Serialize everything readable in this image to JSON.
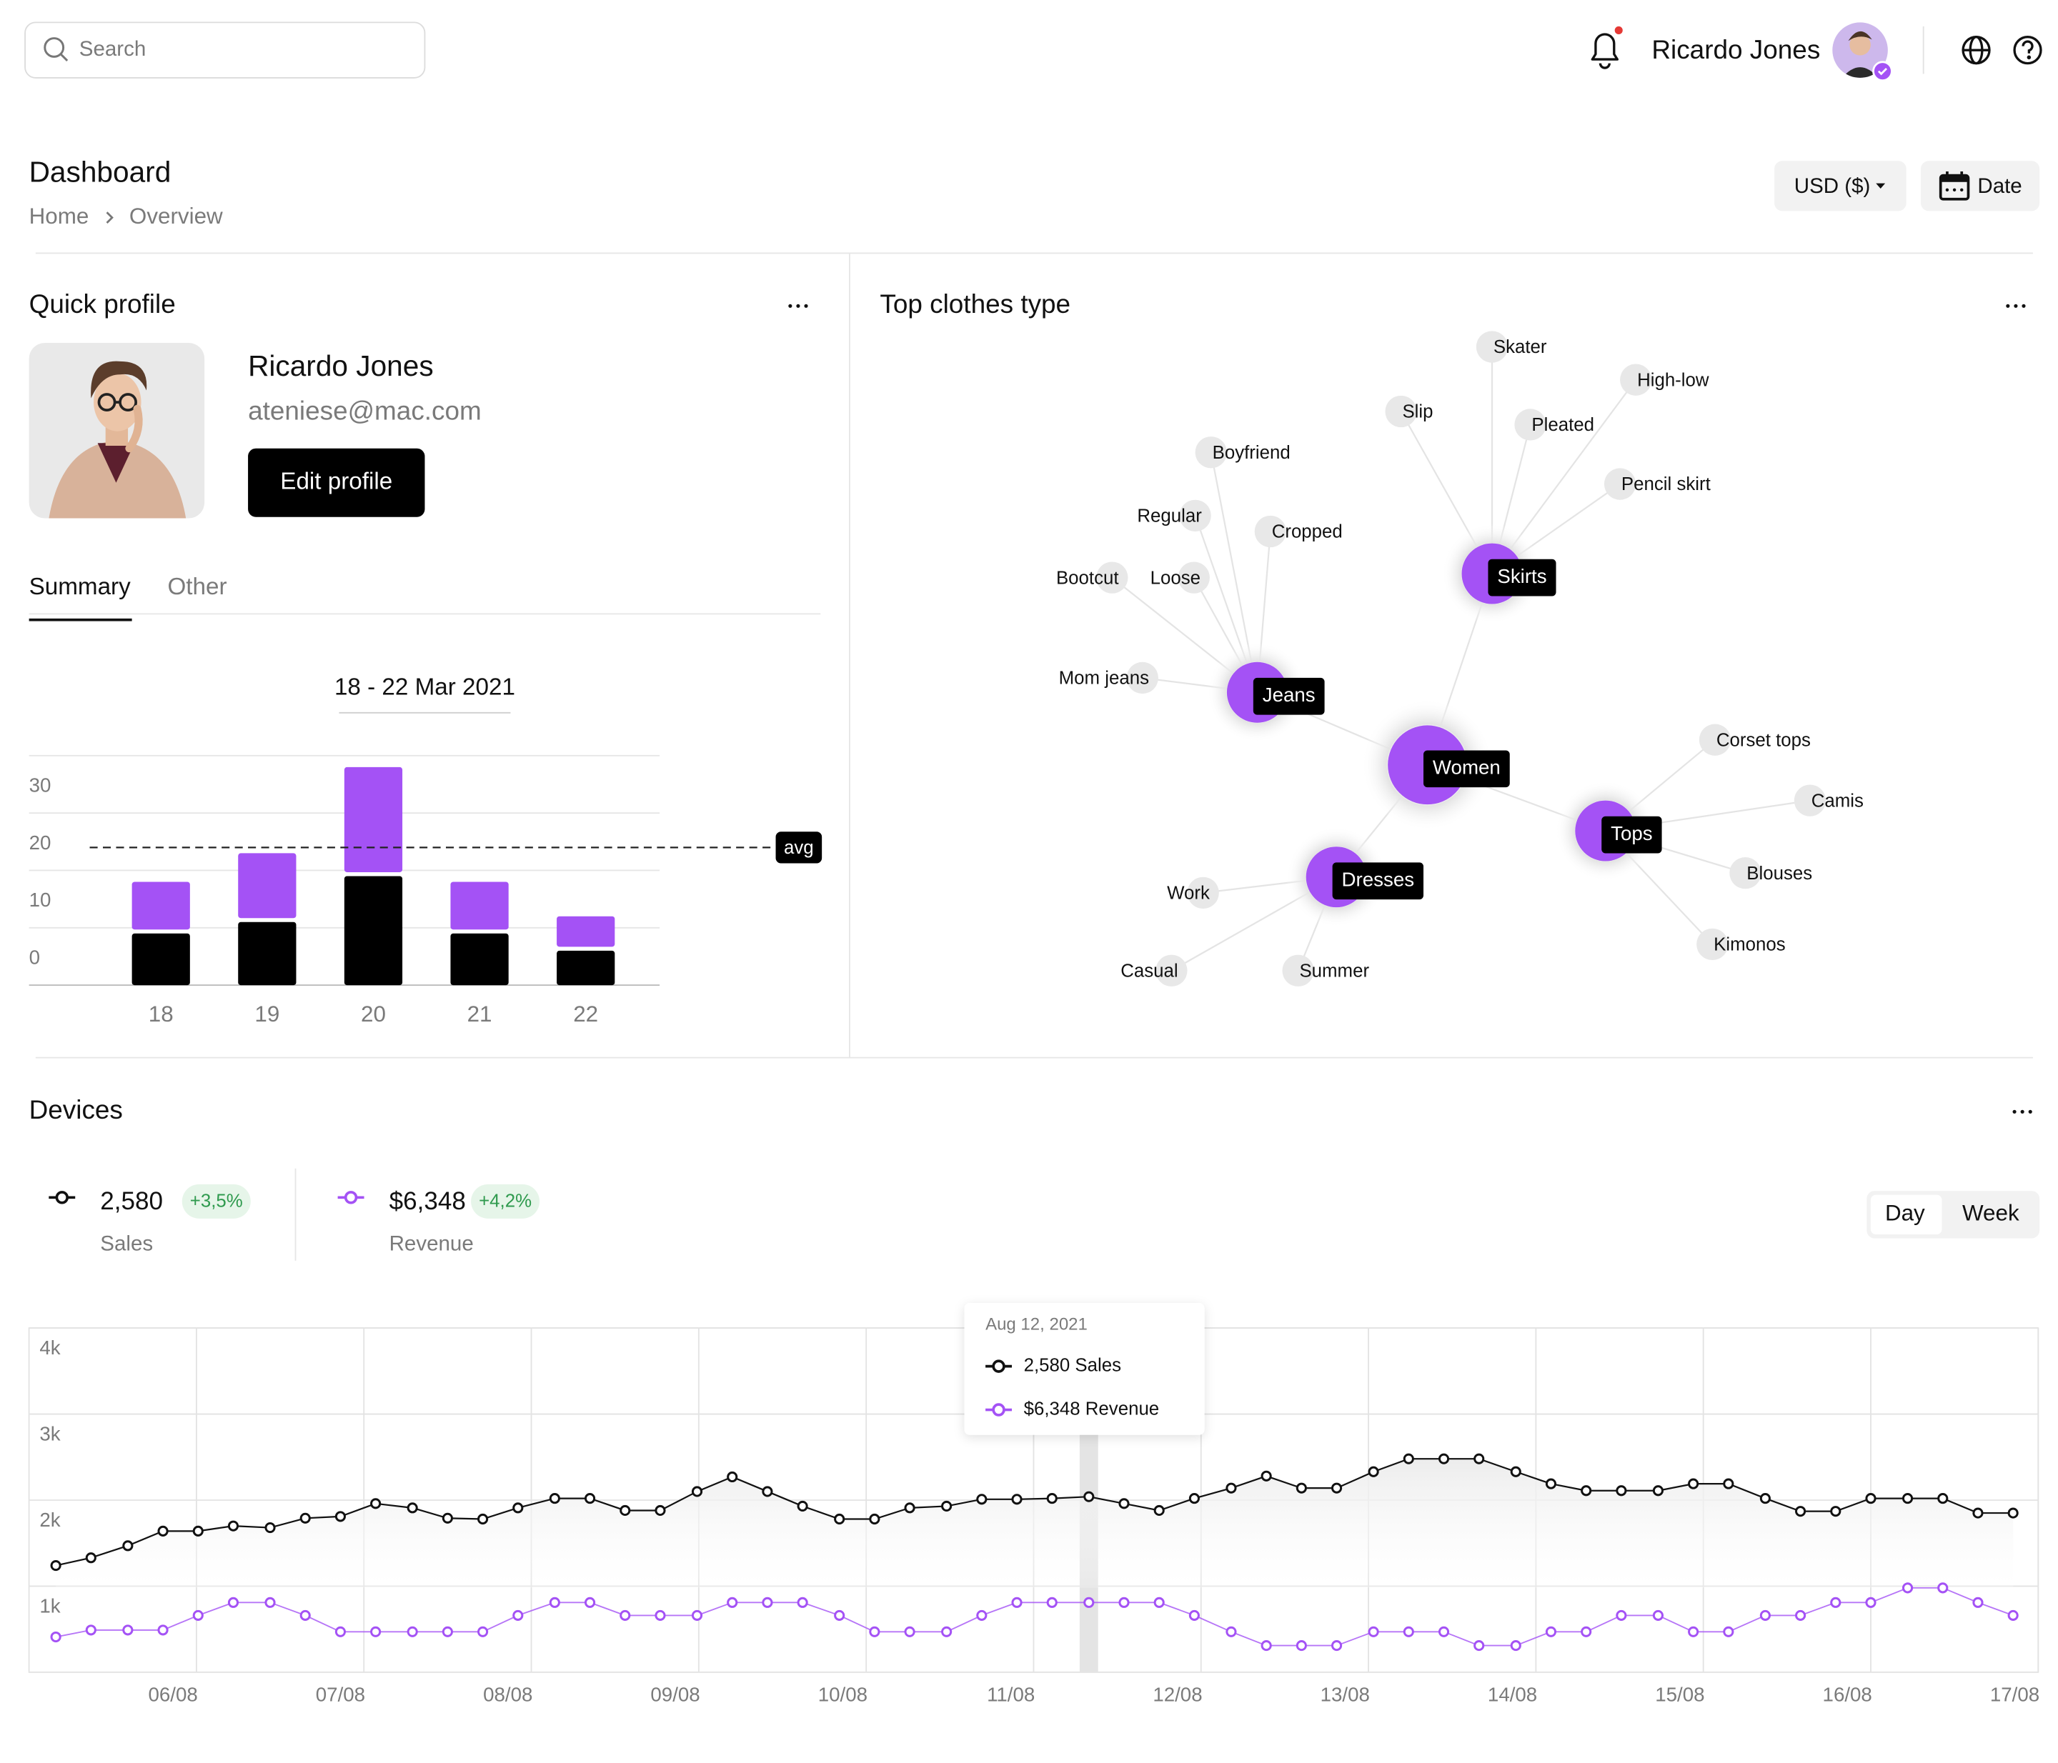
{
  "header": {
    "search_placeholder": "Search",
    "user_name": "Ricardo Jones"
  },
  "page": {
    "title": "Dashboard",
    "breadcrumb": [
      "Home",
      "Overview"
    ],
    "currency": "USD ($)",
    "date_button": "Date"
  },
  "quick_profile": {
    "title": "Quick profile",
    "name": "Ricardo Jones",
    "email": "ateniese@mac.com",
    "button": "Edit profile",
    "tabs": [
      "Summary",
      "Other"
    ],
    "date_range": "18 - 22 Mar 2021",
    "chart": {
      "type": "bar",
      "stacked": true,
      "categories": [
        "18",
        "19",
        "20",
        "21",
        "22"
      ],
      "series": [
        {
          "color": "#000000",
          "values": [
            9,
            11,
            19,
            9,
            6
          ]
        },
        {
          "color": "#a452f5",
          "values": [
            9,
            12,
            19,
            9,
            6
          ]
        }
      ],
      "avg": {
        "value": 24,
        "label": "avg"
      },
      "ylim": [
        0,
        40
      ],
      "yticks": [
        0,
        10,
        20,
        30
      ],
      "grid": true
    }
  },
  "top_clothes": {
    "title": "Top clothes type",
    "center": "Women",
    "groups": [
      {
        "name": "Jeans",
        "items": [
          "Boyfriend",
          "Regular",
          "Cropped",
          "Bootcut",
          "Loose",
          "Mom jeans"
        ]
      },
      {
        "name": "Skirts",
        "items": [
          "Skater",
          "High-low",
          "Slip",
          "Pleated",
          "Pencil skirt"
        ]
      },
      {
        "name": "Dresses",
        "items": [
          "Work",
          "Casual",
          "Summer"
        ]
      },
      {
        "name": "Tops",
        "items": [
          "Corset tops",
          "Camis",
          "Blouses",
          "Kimonos"
        ]
      }
    ]
  },
  "devices": {
    "title": "Devices",
    "metrics": [
      {
        "value": "2,580",
        "change": "+3,5%",
        "label": "Sales"
      },
      {
        "value": "$6,348",
        "change": "+4,2%",
        "label": "Revenue"
      }
    ],
    "toggle": [
      "Day",
      "Week"
    ],
    "tooltip": {
      "date": "Aug 12, 2021",
      "items": [
        "2,580 Sales",
        "$6,348 Revenue"
      ]
    },
    "chart": {
      "type": "line",
      "x": [
        5.16,
        5.37,
        5.59,
        5.8,
        6.01,
        6.22,
        6.44,
        6.65,
        6.86,
        7.07,
        7.29,
        7.5,
        7.71,
        7.92,
        8.14,
        8.35,
        8.56,
        8.77,
        8.99,
        9.2,
        9.41,
        9.62,
        9.84,
        10.05,
        10.26,
        10.48,
        10.69,
        10.9,
        11.11,
        11.33,
        11.54,
        11.75,
        11.96,
        12.18,
        12.39,
        12.6,
        12.81,
        13.03,
        13.24,
        13.45,
        13.66,
        13.88,
        14.09,
        14.3,
        14.51,
        14.73,
        14.94,
        15.15,
        15.37,
        15.58,
        15.79,
        16.0,
        16.22,
        16.43,
        16.64,
        16.85
      ],
      "series": [
        {
          "color": "#111111",
          "values": [
            1240,
            1330,
            1470,
            1640,
            1640,
            1700,
            1680,
            1790,
            1810,
            1960,
            1910,
            1790,
            1780,
            1910,
            2020,
            2020,
            1880,
            1880,
            2100,
            2270,
            2100,
            1930,
            1780,
            1780,
            1910,
            1930,
            2010,
            2010,
            2020,
            2040,
            1960,
            1880,
            2020,
            2140,
            2280,
            2140,
            2140,
            2330,
            2480,
            2480,
            2480,
            2330,
            2190,
            2110,
            2110,
            2110,
            2190,
            2190,
            2020,
            1870,
            1870,
            2020,
            2020,
            2020,
            1850,
            1850
          ]
        },
        {
          "color": "#a452f5",
          "values": [
            410,
            490,
            490,
            490,
            660,
            810,
            810,
            660,
            470,
            470,
            470,
            470,
            470,
            660,
            810,
            810,
            660,
            660,
            660,
            810,
            810,
            810,
            660,
            470,
            470,
            470,
            660,
            810,
            810,
            810,
            810,
            810,
            660,
            470,
            310,
            310,
            310,
            470,
            470,
            470,
            310,
            310,
            470,
            470,
            660,
            660,
            470,
            470,
            660,
            660,
            810,
            810,
            980,
            980,
            810,
            660
          ]
        }
      ],
      "xlim": [
        5,
        17
      ],
      "xticks": [
        {
          "value": 6,
          "label": "06/08"
        },
        {
          "value": 7,
          "label": "07/08"
        },
        {
          "value": 8,
          "label": "08/08"
        },
        {
          "value": 9,
          "label": "09/08"
        },
        {
          "value": 10,
          "label": "10/08"
        },
        {
          "value": 11,
          "label": "11/08"
        },
        {
          "value": 12,
          "label": "12/08"
        },
        {
          "value": 13,
          "label": "13/08"
        },
        {
          "value": 14,
          "label": "14/08"
        },
        {
          "value": 15,
          "label": "15/08"
        },
        {
          "value": 16,
          "label": "16/08"
        },
        {
          "value": 17,
          "label": "17/08"
        }
      ],
      "ylim": [
        0,
        4000
      ],
      "yticks": [
        {
          "value": 1000,
          "label": "1k"
        },
        {
          "value": 2000,
          "label": "2k"
        },
        {
          "value": 3000,
          "label": "3k"
        },
        {
          "value": 4000,
          "label": "4k"
        }
      ],
      "grid": true
    }
  }
}
